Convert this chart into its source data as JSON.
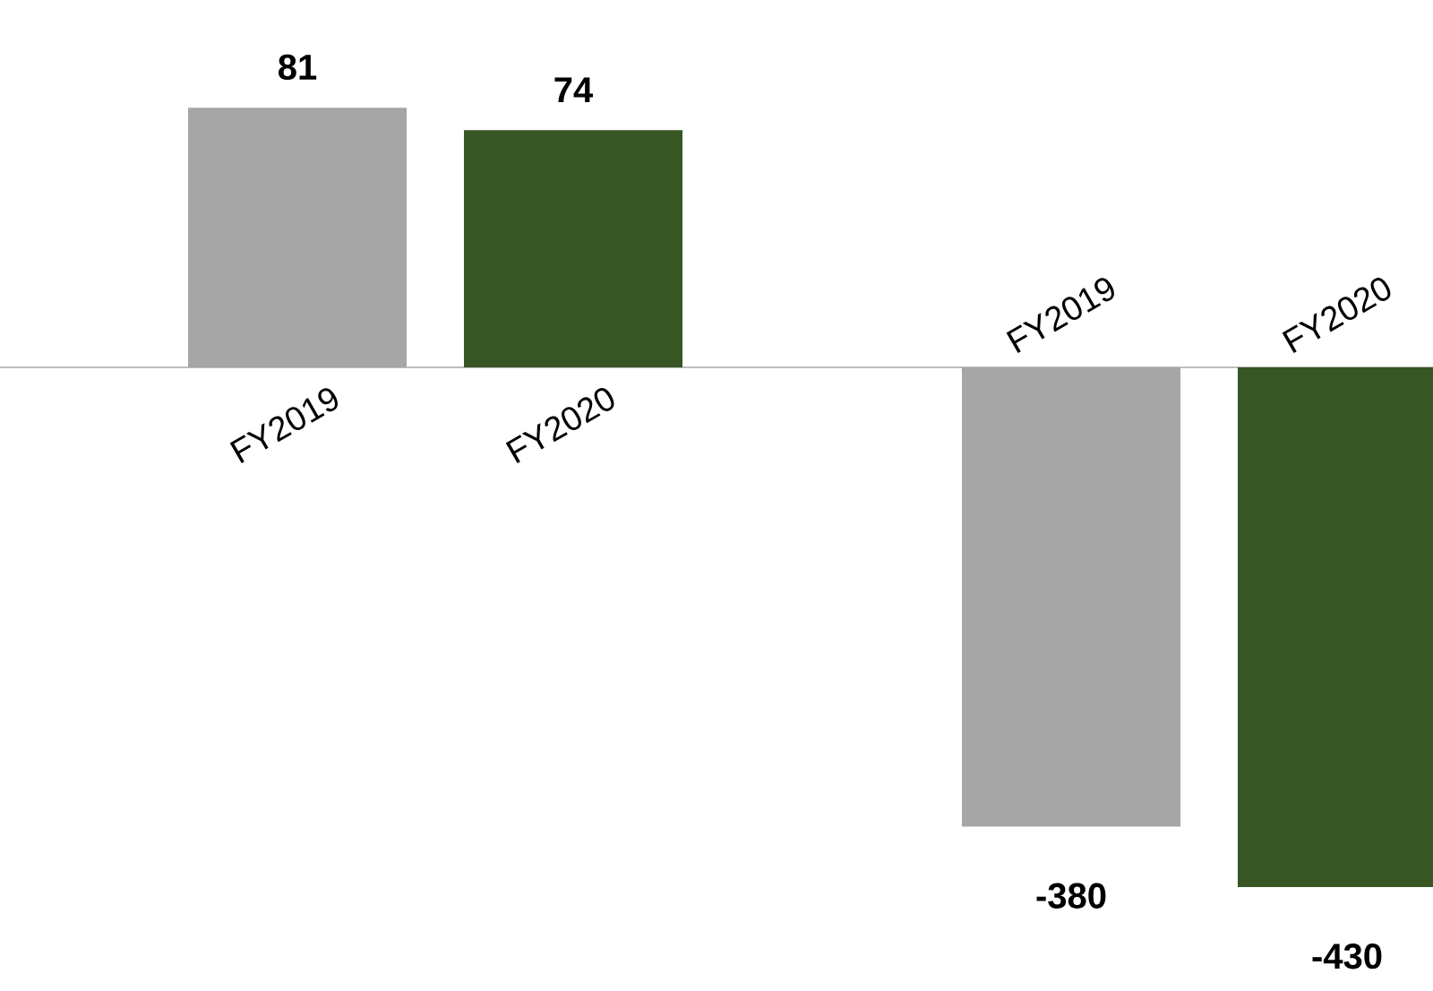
{
  "chart_data": [
    {
      "type": "bar",
      "categories": [
        "FY2019",
        "FY2020"
      ],
      "values": [
        81,
        74
      ],
      "colors": [
        "#a6a6a6",
        "#375623"
      ],
      "data_labels": true
    },
    {
      "type": "bar",
      "categories": [
        "FY2019",
        "FY2020"
      ],
      "values": [
        -380,
        -430
      ],
      "colors": [
        "#a6a6a6",
        "#375623"
      ],
      "data_labels": true
    }
  ]
}
